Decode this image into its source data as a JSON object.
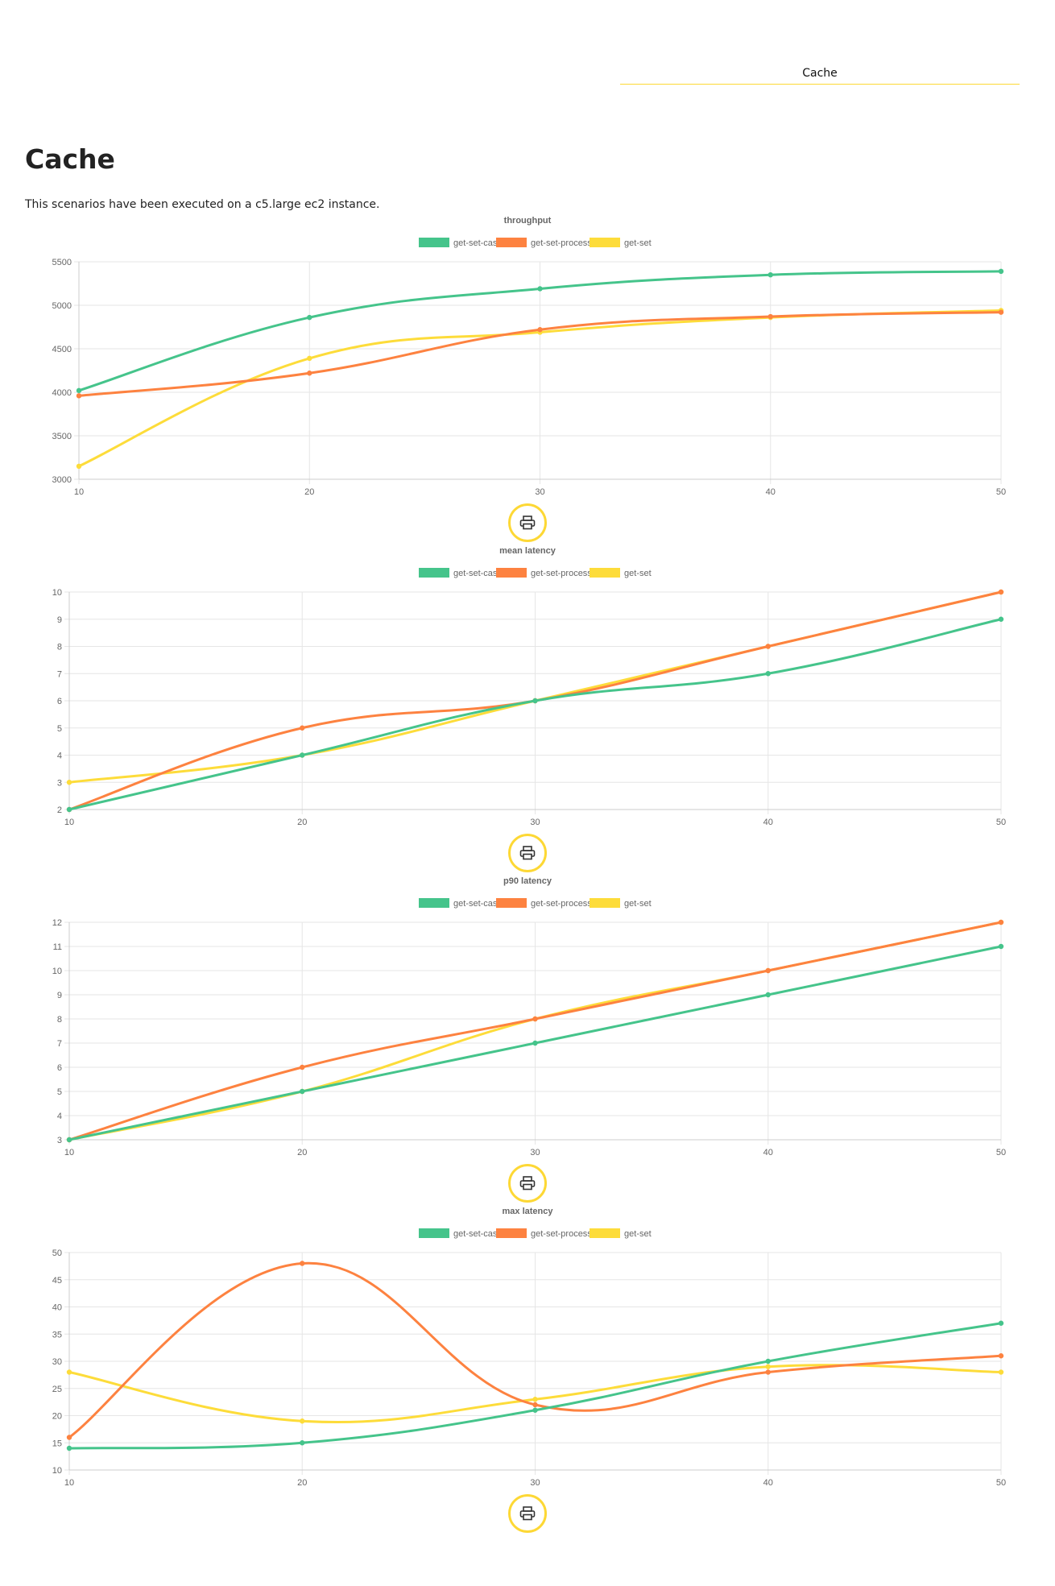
{
  "nav": {
    "tab_label": "Cache"
  },
  "page": {
    "title": "Cache",
    "description": "This scenarios have been executed on a c5.large ec2 instance."
  },
  "colors": {
    "get-set-cast": "#45c48b",
    "get-set-process": "#fd8240",
    "get-set": "#fddc3a",
    "accent": "#fdd835"
  },
  "print_icon": "printer-icon",
  "chart_data": [
    {
      "type": "line",
      "title": "throughput",
      "x": [
        10,
        20,
        30,
        40,
        50
      ],
      "ylim": [
        3000,
        5500
      ],
      "yticks": [
        3000,
        3500,
        4000,
        4500,
        5000,
        5500
      ],
      "grid": true,
      "legend": "top-center",
      "series": [
        {
          "name": "get-set-cast",
          "values": [
            4020,
            4860,
            5190,
            5350,
            5390
          ]
        },
        {
          "name": "get-set-process",
          "values": [
            3960,
            4220,
            4720,
            4870,
            4920
          ]
        },
        {
          "name": "get-set",
          "values": [
            3150,
            4390,
            4690,
            4860,
            4940
          ]
        }
      ]
    },
    {
      "type": "line",
      "title": "mean latency",
      "x": [
        10,
        20,
        30,
        40,
        50
      ],
      "ylim": [
        2,
        10
      ],
      "yticks": [
        2,
        3,
        4,
        5,
        6,
        7,
        8,
        9,
        10
      ],
      "grid": true,
      "legend": "top-center",
      "series": [
        {
          "name": "get-set-cast",
          "values": [
            2,
            4,
            6,
            7,
            9
          ]
        },
        {
          "name": "get-set-process",
          "values": [
            2,
            5,
            6,
            8,
            10
          ]
        },
        {
          "name": "get-set",
          "values": [
            3,
            4,
            6,
            8,
            10
          ]
        }
      ]
    },
    {
      "type": "line",
      "title": "p90 latency",
      "x": [
        10,
        20,
        30,
        40,
        50
      ],
      "ylim": [
        3,
        12
      ],
      "yticks": [
        3,
        4,
        5,
        6,
        7,
        8,
        9,
        10,
        11,
        12
      ],
      "grid": true,
      "legend": "top-center",
      "series": [
        {
          "name": "get-set-cast",
          "values": [
            3,
            5,
            7,
            9,
            11
          ]
        },
        {
          "name": "get-set-process",
          "values": [
            3,
            6,
            8,
            10,
            12
          ]
        },
        {
          "name": "get-set",
          "values": [
            3,
            5,
            8,
            10,
            12
          ]
        }
      ]
    },
    {
      "type": "line",
      "title": "max latency",
      "x": [
        10,
        20,
        30,
        40,
        50
      ],
      "ylim": [
        10,
        50
      ],
      "yticks": [
        10,
        15,
        20,
        25,
        30,
        35,
        40,
        45,
        50
      ],
      "grid": true,
      "legend": "top-center",
      "series": [
        {
          "name": "get-set-cast",
          "values": [
            14,
            15,
            21,
            30,
            37
          ]
        },
        {
          "name": "get-set-process",
          "values": [
            16,
            48,
            22,
            28,
            31
          ]
        },
        {
          "name": "get-set",
          "values": [
            28,
            19,
            23,
            29,
            28
          ]
        }
      ]
    }
  ]
}
